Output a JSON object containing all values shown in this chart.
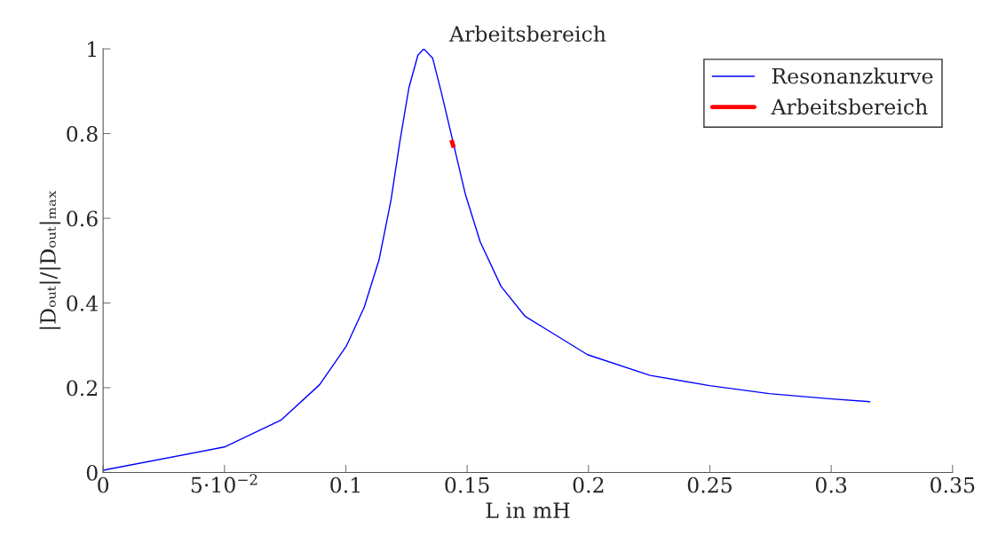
{
  "chart_data": {
    "type": "line",
    "title": "Arbeitsbereich",
    "xlabel": "L in mH",
    "ylabel": "|Dₒᵤₜ|/|Dₒᵤₜ|ₘₐₓ",
    "series": [
      {
        "name": "Resonanzkurve",
        "color": "#0000ff",
        "x": [
          0,
          0.05,
          0.0732,
          0.0892,
          0.1002,
          0.1076,
          0.1137,
          0.1186,
          0.1223,
          0.126,
          0.1297,
          0.1321,
          0.1358,
          0.1395,
          0.1493,
          0.1554,
          0.164,
          0.1738,
          0.1837,
          0.1996,
          0.2254,
          0.2499,
          0.2744,
          0.299,
          0.3161
        ],
        "values": [
          0.005,
          0.06,
          0.123,
          0.207,
          0.298,
          0.39,
          0.502,
          0.642,
          0.782,
          0.908,
          0.985,
          1.0,
          0.978,
          0.894,
          0.656,
          0.544,
          0.439,
          0.369,
          0.334,
          0.278,
          0.229,
          0.205,
          0.186,
          0.174,
          0.167
        ]
      },
      {
        "name": "Arbeitsbereich",
        "color": "#ff0000",
        "x": [
          0.1435,
          0.1445
        ],
        "values": [
          0.785,
          0.767
        ]
      }
    ],
    "xlim": [
      0,
      0.35
    ],
    "ylim": [
      0,
      1
    ],
    "xticks": [
      0,
      {
        "value": 0.05,
        "label": "5·10$^{−2}$"
      },
      0.1,
      0.15,
      0.2,
      0.25,
      0.3,
      0.35
    ],
    "yticks": [
      0,
      0.2,
      0.4,
      0.6,
      0.8,
      1
    ],
    "legend": "top right",
    "grid": false,
    "line_style": "solid",
    "marker": "none"
  }
}
